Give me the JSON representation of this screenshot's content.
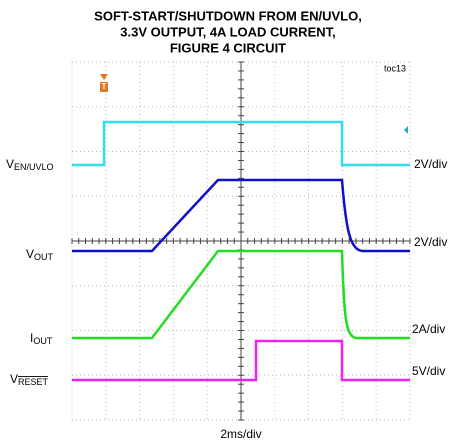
{
  "title": [
    "SOFT-START/SHUTDOWN FROM EN/UVLO,",
    "3.3V OUTPUT, 4A LOAD CURRENT,",
    "FIGURE 4 CIRCUIT"
  ],
  "figure_id": "toc13",
  "channels": [
    {
      "symbol": "V",
      "subscript": "EN/UVLO",
      "scale": "2V/div"
    },
    {
      "symbol": "V",
      "subscript": "OUT",
      "scale": "2V/div"
    },
    {
      "symbol": "I",
      "subscript": "OUT",
      "scale": "2A/div"
    },
    {
      "symbol": "V",
      "subscript": "RESET",
      "scale": "5V/div"
    }
  ],
  "time_scale": "2ms/div"
}
